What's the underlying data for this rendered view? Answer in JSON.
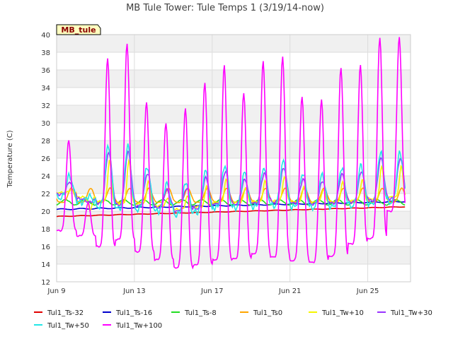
{
  "chart_data": {
    "type": "line",
    "title": "MB Tule Tower: Tule Temps 1 (3/19/14-now)",
    "xlabel": "",
    "ylabel": "Temperature (C)",
    "xlim": [
      9,
      27.2
    ],
    "ylim": [
      12,
      40
    ],
    "yticks": [
      12,
      14,
      16,
      18,
      20,
      22,
      24,
      26,
      28,
      30,
      32,
      34,
      36,
      38,
      40
    ],
    "xticks": [
      {
        "value": 9,
        "label": "Jun 9"
      },
      {
        "value": 13,
        "label": "Jun 13"
      },
      {
        "value": 17,
        "label": "Jun 17"
      },
      {
        "value": 21,
        "label": "Jun 21"
      },
      {
        "value": 25,
        "label": "Jun 25"
      }
    ],
    "grid": true,
    "legend_position": "bottom",
    "station_tag": "MB_tule",
    "series": [
      {
        "name": "Tul1_Ts-32",
        "color": "#e00000",
        "key": "ts32"
      },
      {
        "name": "Tul1_Ts-16",
        "color": "#0000cc",
        "key": "ts16"
      },
      {
        "name": "Tul1_Ts-8",
        "color": "#22dd22",
        "key": "ts8"
      },
      {
        "name": "Tul1_Ts0",
        "color": "#ffa500",
        "key": "ts0"
      },
      {
        "name": "Tul1_Tw+10",
        "color": "#f5f500",
        "key": "tw10"
      },
      {
        "name": "Tul1_Tw+30",
        "color": "#9933ff",
        "key": "tw30"
      },
      {
        "name": "Tul1_Tw+50",
        "color": "#22e6e6",
        "key": "tw50"
      },
      {
        "name": "Tul1_Tw+100",
        "color": "#ff00ff",
        "key": "tw100"
      }
    ],
    "daily_extremes": {
      "days": [
        9,
        10,
        11,
        12,
        13,
        14,
        15,
        16,
        17,
        18,
        19,
        20,
        21,
        22,
        23,
        24,
        25,
        26
      ],
      "tw100_min": [
        17.8,
        17.2,
        16.0,
        16.8,
        15.4,
        14.5,
        13.6,
        13.9,
        14.5,
        14.6,
        15.2,
        14.8,
        14.4,
        14.2,
        14.9,
        16.3,
        16.9,
        20.0
      ],
      "tw100_max": [
        28.0,
        21.0,
        37.3,
        39.0,
        32.3,
        30.0,
        31.6,
        34.6,
        36.5,
        33.4,
        37.0,
        37.5,
        33.0,
        32.6,
        36.3,
        36.5,
        39.7,
        39.7
      ],
      "tw50_max": [
        24.0,
        21.7,
        27.4,
        27.4,
        25.0,
        23.1,
        23.3,
        24.5,
        25.2,
        24.3,
        25.0,
        25.6,
        24.3,
        24.1,
        24.9,
        25.2,
        26.7,
        26.7
      ],
      "tw50_min": [
        21.5,
        21.0,
        20.5,
        20.3,
        20.2,
        20.0,
        19.6,
        19.9,
        20.4,
        20.4,
        20.5,
        20.6,
        20.5,
        20.4,
        20.5,
        20.6,
        20.8,
        21.0
      ]
    },
    "ts32_start": 19.4,
    "ts32_end": 20.5,
    "ts16_start": 20.2,
    "ts16_end": 21.1,
    "ts8_level": 21.0
  }
}
